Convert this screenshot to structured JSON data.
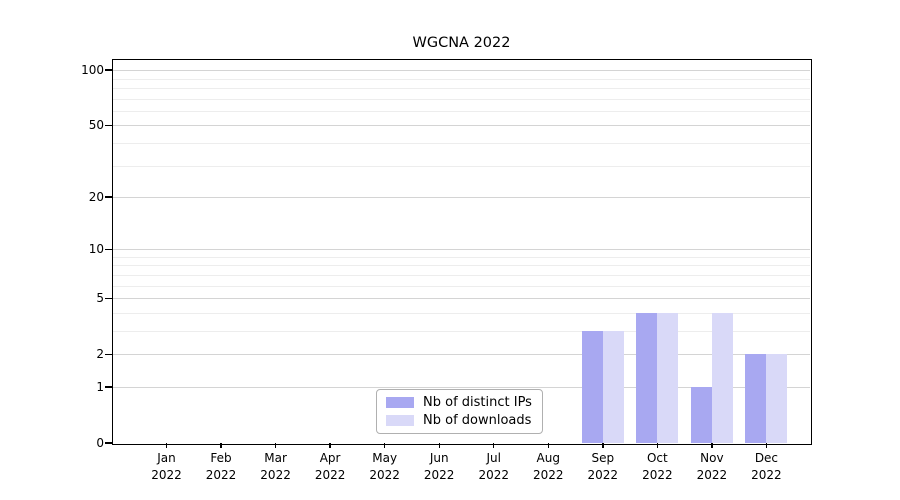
{
  "chart_data": {
    "type": "bar",
    "title": "WGCNA 2022",
    "xlabel": "",
    "ylabel": "",
    "categories": [
      "Jan 2022",
      "Feb 2022",
      "Mar 2022",
      "Apr 2022",
      "May 2022",
      "Jun 2022",
      "Jul 2022",
      "Aug 2022",
      "Sep 2022",
      "Oct 2022",
      "Nov 2022",
      "Dec 2022"
    ],
    "series": [
      {
        "name": "Nb of distinct IPs",
        "color": "#a8a8f1",
        "values": [
          0,
          0,
          0,
          0,
          0,
          0,
          0,
          0,
          3,
          4,
          1,
          2
        ]
      },
      {
        "name": "Nb of downloads",
        "color": "#d9d9f8",
        "values": [
          0,
          0,
          0,
          0,
          0,
          0,
          0,
          0,
          3,
          4,
          4,
          2
        ]
      }
    ],
    "yscale": "log1p",
    "yticks": [
      0,
      1,
      2,
      5,
      10,
      20,
      50,
      100
    ],
    "minor_gridlines": [
      3,
      4,
      6,
      7,
      8,
      9,
      30,
      40,
      60,
      70,
      80,
      90
    ],
    "ylim": [
      0,
      113.5
    ],
    "grid": true,
    "legend_position": "lower center"
  }
}
